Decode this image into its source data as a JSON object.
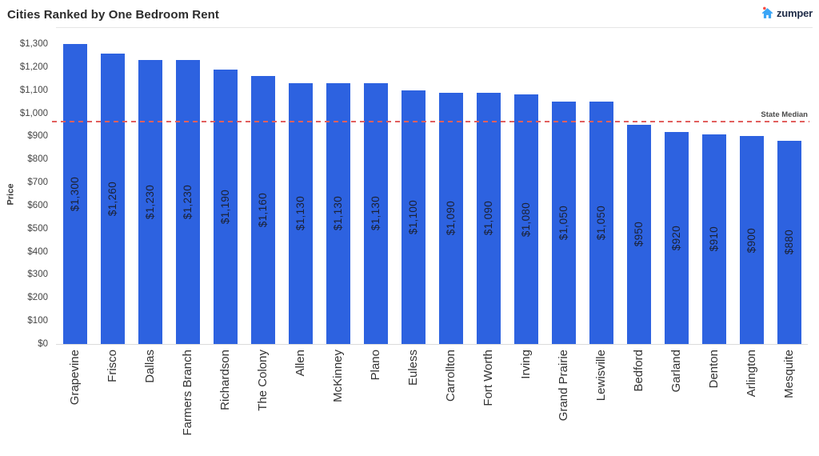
{
  "header": {
    "title": "Cities Ranked by One Bedroom Rent",
    "logo_text": "zumper",
    "logo_house_color": "#3aa5f6",
    "logo_flame_color": "#fa4b42"
  },
  "chart_data": {
    "type": "bar",
    "title": "Cities Ranked by One Bedroom Rent",
    "categories": [
      "Grapevine",
      "Frisco",
      "Dallas",
      "Farmers Branch",
      "Richardson",
      "The Colony",
      "Allen",
      "McKinney",
      "Plano",
      "Euless",
      "Carrollton",
      "Fort Worth",
      "Irving",
      "Grand Prairie",
      "Lewisville",
      "Bedford",
      "Garland",
      "Denton",
      "Arlington",
      "Mesquite"
    ],
    "values": [
      1300,
      1260,
      1230,
      1230,
      1190,
      1160,
      1130,
      1130,
      1130,
      1100,
      1090,
      1090,
      1080,
      1050,
      1050,
      950,
      920,
      910,
      900,
      880
    ],
    "value_labels": [
      "$1,300",
      "$1,260",
      "$1,230",
      "$1,230",
      "$1,190",
      "$1,160",
      "$1,130",
      "$1,130",
      "$1,130",
      "$1,100",
      "$1,090",
      "$1,090",
      "$1,080",
      "$1,050",
      "$1,050",
      "$950",
      "$920",
      "$910",
      "$900",
      "$880"
    ],
    "xlabel": "",
    "ylabel": "Price",
    "ylim": [
      0,
      1300
    ],
    "grid": false,
    "legend": false,
    "bar_color": "#2d62e0",
    "yticks": [
      {
        "value": 0,
        "label": "$0"
      },
      {
        "value": 100,
        "label": "$100"
      },
      {
        "value": 200,
        "label": "$200"
      },
      {
        "value": 300,
        "label": "$300"
      },
      {
        "value": 400,
        "label": "$400"
      },
      {
        "value": 500,
        "label": "$500"
      },
      {
        "value": 600,
        "label": "$600"
      },
      {
        "value": 700,
        "label": "$700"
      },
      {
        "value": 800,
        "label": "$800"
      },
      {
        "value": 900,
        "label": "$900"
      },
      {
        "value": 1000,
        "label": "$1,000"
      },
      {
        "value": 1100,
        "label": "$1,100"
      },
      {
        "value": 1200,
        "label": "$1,200"
      },
      {
        "value": 1300,
        "label": "$1,300"
      }
    ],
    "reference_line": {
      "label": "State Median",
      "value": 960,
      "color": "#e2605e",
      "style": "dashed"
    }
  }
}
